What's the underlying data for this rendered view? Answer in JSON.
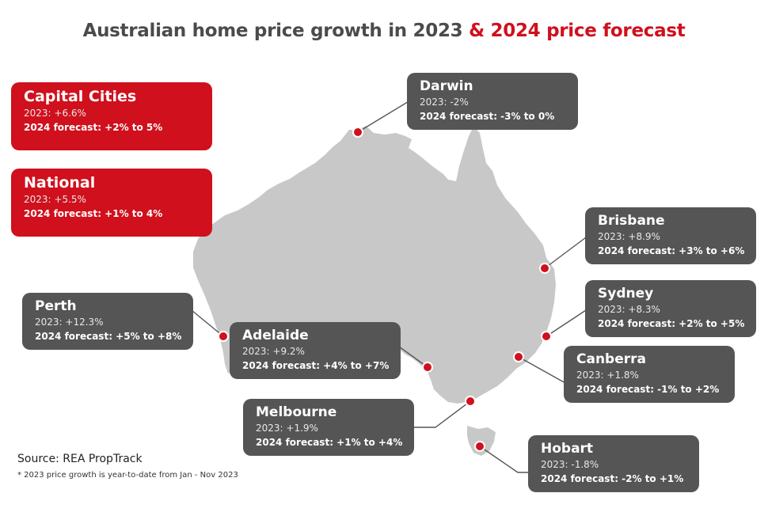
{
  "title": {
    "main": "Australian home price growth in 2023",
    "accent": "& 2024 price forecast"
  },
  "summary": {
    "capital_cities": {
      "name": "Capital Cities",
      "growth": "2023: +6.6%",
      "forecast": "2024 forecast: +2% to 5%"
    },
    "national": {
      "name": "National",
      "growth": "2023: +5.5%",
      "forecast": "2024 forecast: +1% to 4%"
    }
  },
  "cities": {
    "darwin": {
      "name": "Darwin",
      "growth": "2023: -2%",
      "forecast": "2024 forecast: -3% to 0%"
    },
    "brisbane": {
      "name": "Brisbane",
      "growth": "2023: +8.9%",
      "forecast": "2024 forecast: +3% to +6%"
    },
    "sydney": {
      "name": "Sydney",
      "growth": "2023: +8.3%",
      "forecast": "2024 forecast: +2% to +5%"
    },
    "canberra": {
      "name": "Canberra",
      "growth": "2023: +1.8%",
      "forecast": "2024 forecast: -1% to +2%"
    },
    "hobart": {
      "name": "Hobart",
      "growth": "2023: -1.8%",
      "forecast": "2024 forecast: -2% to +1%"
    },
    "melbourne": {
      "name": "Melbourne",
      "growth": "2023: +1.9%",
      "forecast": "2024 forecast: +1% to +4%"
    },
    "adelaide": {
      "name": "Adelaide",
      "growth": "2023: +9.2%",
      "forecast": "2024 forecast: +4% to +7%"
    },
    "perth": {
      "name": "Perth",
      "growth": "2023: +12.3%",
      "forecast": "2024 forecast: +5% to +8%"
    }
  },
  "source": "Source: REA PropTrack",
  "footnote": "* 2023 price growth is year-to-date from Jan - Nov 2023",
  "colors": {
    "accent": "#d0101d",
    "card": "#555555",
    "land": "#c8c8c8",
    "title": "#4b4b4b"
  }
}
